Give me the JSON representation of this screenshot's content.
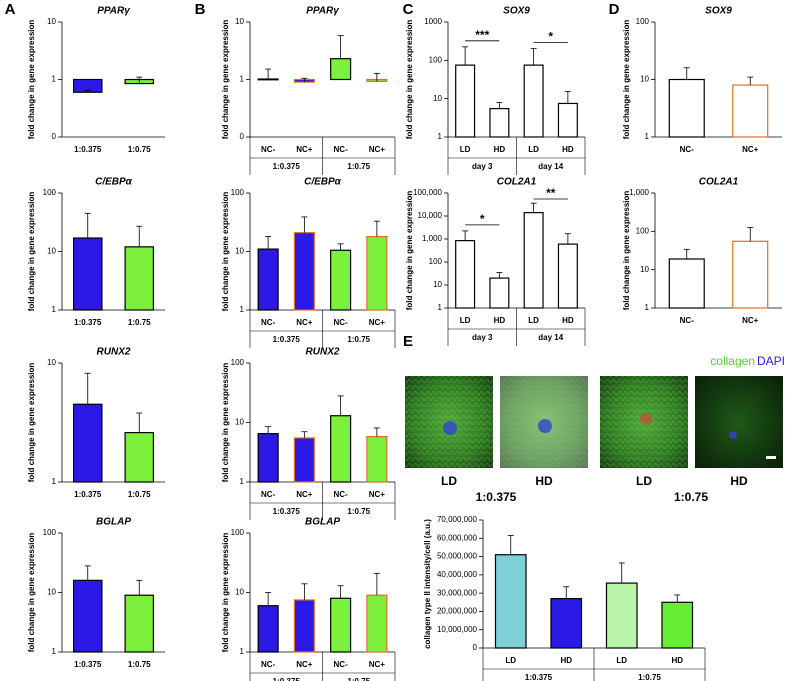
{
  "panel_labels": [
    "A",
    "B",
    "C",
    "D",
    "E"
  ],
  "image_panel": {
    "legend": [
      "collagen",
      "DAPI"
    ],
    "labels": [
      "LD",
      "HD",
      "LD",
      "HD"
    ],
    "groups": [
      "1:0.375",
      "1:0.75"
    ]
  },
  "chart_data": [
    {
      "type": "bar",
      "title": "PPARγ",
      "y_label": "fold change in gene expression",
      "log": true,
      "categories": [
        "1:0.375",
        "1:0.75"
      ],
      "values": [
        0.6,
        0.85
      ],
      "errors": [
        0.05,
        0.25
      ],
      "colors": [
        "#2b1ae6",
        "#7cf03c"
      ],
      "edge_colors": [
        "#000000",
        "#000000"
      ],
      "ylim": [
        0.1,
        10
      ],
      "yticks": [
        {
          "value": 0.1,
          "label": "0"
        },
        1,
        10
      ]
    },
    {
      "type": "bar",
      "title": "C/EBPα",
      "y_label": "fold change in gene expression",
      "log": true,
      "categories": [
        "1:0.375",
        "1:0.75"
      ],
      "values": [
        17,
        12
      ],
      "errors": [
        28,
        15
      ],
      "colors": [
        "#2b1ae6",
        "#7cf03c"
      ],
      "edge_colors": [
        "#000000",
        "#000000"
      ],
      "ylim": [
        1,
        100
      ],
      "yticks": [
        1,
        10,
        100
      ]
    },
    {
      "type": "bar",
      "title": "RUNX2",
      "y_label": "fold change in gene expression",
      "log": true,
      "categories": [
        "1:0.375",
        "1:0.75"
      ],
      "values": [
        4.5,
        2.6
      ],
      "errors": [
        3.7,
        1.2
      ],
      "colors": [
        "#2b1ae6",
        "#7cf03c"
      ],
      "edge_colors": [
        "#000000",
        "#000000"
      ],
      "ylim": [
        1,
        10
      ],
      "yticks": [
        1,
        10
      ]
    },
    {
      "type": "bar",
      "title": "BGLAP",
      "y_label": "fold change in gene expression",
      "log": true,
      "categories": [
        "1:0.375",
        "1:0.75"
      ],
      "values": [
        16,
        9
      ],
      "errors": [
        12,
        7
      ],
      "colors": [
        "#2b1ae6",
        "#7cf03c"
      ],
      "edge_colors": [
        "#000000",
        "#000000"
      ],
      "ylim": [
        1,
        100
      ],
      "yticks": [
        1,
        10,
        100
      ]
    },
    {
      "type": "bar",
      "title": "PPARγ",
      "y_label": "fold change in gene expression",
      "log": true,
      "categories": [
        "NC-",
        "NC+",
        "NC-",
        "NC+"
      ],
      "groups": [
        "1:0.375",
        "1:0.75"
      ],
      "values": [
        1.02,
        0.9,
        2.3,
        0.93
      ],
      "errors": [
        0.5,
        0.15,
        3.5,
        0.35
      ],
      "colors": [
        "#2b1ae6",
        "#2b1ae6",
        "#7cf03c",
        "#7cf03c"
      ],
      "edge_colors": [
        "#000000",
        "#e07020",
        "#000000",
        "#e07020"
      ],
      "ylim": [
        0.1,
        10
      ],
      "yticks": [
        {
          "value": 0.1,
          "label": "0"
        },
        1,
        10
      ]
    },
    {
      "type": "bar",
      "title": "C/EBPα",
      "y_label": "fold change in gene expression",
      "log": true,
      "categories": [
        "NC-",
        "NC+",
        "NC-",
        "NC+"
      ],
      "groups": [
        "1:0.375",
        "1:0.75"
      ],
      "values": [
        11,
        21,
        10.5,
        18
      ],
      "errors": [
        7,
        18,
        3,
        15
      ],
      "colors": [
        "#2b1ae6",
        "#2b1ae6",
        "#7cf03c",
        "#7cf03c"
      ],
      "edge_colors": [
        "#000000",
        "#e07020",
        "#000000",
        "#e07020"
      ],
      "ylim": [
        1,
        100
      ],
      "yticks": [
        1,
        10,
        100
      ]
    },
    {
      "type": "bar",
      "title": "RUNX2",
      "y_label": "fold change in gene expression",
      "log": true,
      "categories": [
        "NC-",
        "NC+",
        "NC-",
        "NC+"
      ],
      "groups": [
        "1:0.375",
        "1:0.75"
      ],
      "values": [
        6.5,
        5.5,
        13,
        5.8
      ],
      "errors": [
        2,
        1.5,
        15,
        2.3
      ],
      "colors": [
        "#2b1ae6",
        "#2b1ae6",
        "#7cf03c",
        "#7cf03c"
      ],
      "edge_colors": [
        "#000000",
        "#e07020",
        "#000000",
        "#e07020"
      ],
      "ylim": [
        1,
        100
      ],
      "yticks": [
        1,
        10,
        100
      ]
    },
    {
      "type": "bar",
      "title": "BGLAP",
      "y_label": "fold change in gene expression",
      "log": true,
      "categories": [
        "NC-",
        "NC+",
        "NC-",
        "NC+"
      ],
      "groups": [
        "1:0.375",
        "1:0.75"
      ],
      "values": [
        6,
        7.5,
        8,
        9
      ],
      "errors": [
        4,
        6.5,
        5,
        12
      ],
      "colors": [
        "#2b1ae6",
        "#2b1ae6",
        "#7cf03c",
        "#7cf03c"
      ],
      "edge_colors": [
        "#000000",
        "#e07020",
        "#000000",
        "#e07020"
      ],
      "ylim": [
        1,
        100
      ],
      "yticks": [
        1,
        10,
        100
      ]
    },
    {
      "type": "bar",
      "title": "SOX9",
      "y_label": "fold change in gene expression",
      "log": true,
      "categories": [
        "LD",
        "HD",
        "LD",
        "HD"
      ],
      "groups": [
        "day 3",
        "day 14"
      ],
      "significance": [
        "***",
        "*"
      ],
      "values": [
        75,
        5.5,
        75,
        7.5
      ],
      "errors": [
        150,
        2.5,
        130,
        8
      ],
      "colors": [
        "#ffffff",
        "#ffffff",
        "#ffffff",
        "#ffffff"
      ],
      "edge_colors": [
        "#000000",
        "#000000",
        "#000000",
        "#000000"
      ],
      "ylim": [
        1,
        1000
      ],
      "yticks": [
        1,
        10,
        100,
        1000
      ]
    },
    {
      "type": "bar",
      "title": "COL2A1",
      "y_label": "fold change in gene expression",
      "log": true,
      "categories": [
        "LD",
        "HD",
        "LD",
        "HD"
      ],
      "groups": [
        "day 3",
        "day 14"
      ],
      "significance": [
        "*",
        "**"
      ],
      "values": [
        850,
        20,
        14000,
        600
      ],
      "errors": [
        1400,
        15,
        22000,
        1100
      ],
      "colors": [
        "#ffffff",
        "#ffffff",
        "#ffffff",
        "#ffffff"
      ],
      "edge_colors": [
        "#000000",
        "#000000",
        "#000000",
        "#000000"
      ],
      "ylim": [
        1,
        100000
      ],
      "yticks": [
        1,
        10,
        100,
        {
          "value": 1000,
          "label": "1,000"
        },
        {
          "value": 10000,
          "label": "10,000"
        },
        {
          "value": 100000,
          "label": "100,000"
        }
      ]
    },
    {
      "type": "bar",
      "title": "SOX9",
      "y_label": "fold change in gene expression",
      "log": true,
      "categories": [
        "NC-",
        "NC+"
      ],
      "values": [
        10,
        8
      ],
      "errors": [
        6,
        3
      ],
      "colors": [
        "#ffffff",
        "#ffffff"
      ],
      "edge_colors": [
        "#000000",
        "#e07020"
      ],
      "ylim": [
        1,
        100
      ],
      "yticks": [
        1,
        10,
        100
      ]
    },
    {
      "type": "bar",
      "title": "COL2A1",
      "y_label": "fold change in gene expression",
      "log": true,
      "categories": [
        "NC-",
        "NC+"
      ],
      "values": [
        19,
        55
      ],
      "errors": [
        15,
        70
      ],
      "colors": [
        "#ffffff",
        "#ffffff"
      ],
      "edge_colors": [
        "#000000",
        "#e07020"
      ],
      "ylim": [
        1,
        1000
      ],
      "yticks": [
        1,
        10,
        100,
        {
          "value": 1000,
          "label": "1,000"
        }
      ]
    },
    {
      "type": "bar",
      "y_label": "collagen type II intensity/cell (a.u.)",
      "log": false,
      "categories": [
        "LD",
        "HD",
        "LD",
        "HD"
      ],
      "groups": [
        "1:0.375",
        "1:0.75"
      ],
      "values": [
        51000000,
        27000000,
        35500000,
        25000000
      ],
      "errors": [
        10500000,
        6500000,
        11000000,
        4000000
      ],
      "colors": [
        "#7ecfd6",
        "#2b1ae6",
        "#b8f5aa",
        "#66ee33"
      ],
      "edge_colors": [
        "#000000",
        "#000000",
        "#000000",
        "#000000"
      ],
      "ylim": [
        0,
        70000000
      ],
      "yticks": [
        0,
        {
          "value": 10000000,
          "label": "10,000,000"
        },
        {
          "value": 20000000,
          "label": "20,000,000"
        },
        {
          "value": 30000000,
          "label": "30,000,000"
        },
        {
          "value": 40000000,
          "label": "40,000,000"
        },
        {
          "value": 50000000,
          "label": "50,000,000"
        },
        {
          "value": 60000000,
          "label": "60,000,000"
        },
        {
          "value": 70000000,
          "label": "70,000,000"
        }
      ]
    }
  ]
}
